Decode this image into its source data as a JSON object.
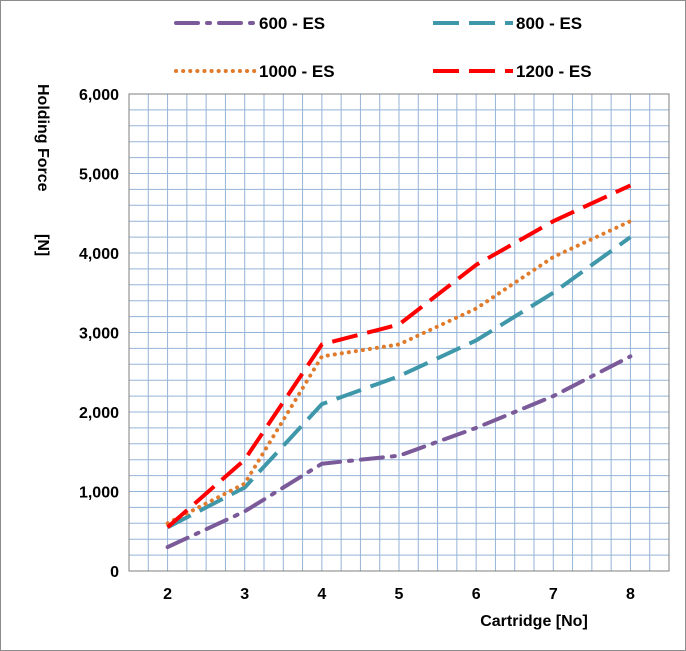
{
  "chart_data": {
    "type": "line",
    "xlabel": "Cartridge [No]",
    "ylabel": "Holding Force [N]",
    "ylabel_lines": [
      "Holding Force",
      "[N]"
    ],
    "categories": [
      "2",
      "3",
      "4",
      "5",
      "6",
      "7",
      "8"
    ],
    "x": [
      2,
      3,
      4,
      5,
      6,
      7,
      8
    ],
    "xlim": [
      1.5,
      8.5
    ],
    "ylim": [
      0,
      6000
    ],
    "y_tick_labels": [
      "0",
      "1,000",
      "2,000",
      "3,000",
      "4,000",
      "5,000",
      "6,000"
    ],
    "y_ticks": [
      0,
      1000,
      2000,
      3000,
      4000,
      5000,
      6000
    ],
    "grid": true,
    "legend_position": "top",
    "series": [
      {
        "name": "600 - ES",
        "color": "#7b5a9a",
        "dash": "long-dash-dot",
        "values": [
          300,
          750,
          1350,
          1450,
          1800,
          2200,
          2700
        ]
      },
      {
        "name": "800 - ES",
        "color": "#3f97aa",
        "dash": "long-dash",
        "values": [
          550,
          1050,
          2100,
          2450,
          2900,
          3500,
          4200
        ]
      },
      {
        "name": "1000 - ES",
        "color": "#e07b2c",
        "dash": "dotted",
        "values": [
          600,
          1100,
          2700,
          2850,
          3300,
          3950,
          4400
        ]
      },
      {
        "name": "1200 - ES",
        "color": "#ff0000",
        "dash": "long-dash",
        "values": [
          550,
          1400,
          2850,
          3100,
          3850,
          4400,
          4850
        ]
      }
    ]
  }
}
